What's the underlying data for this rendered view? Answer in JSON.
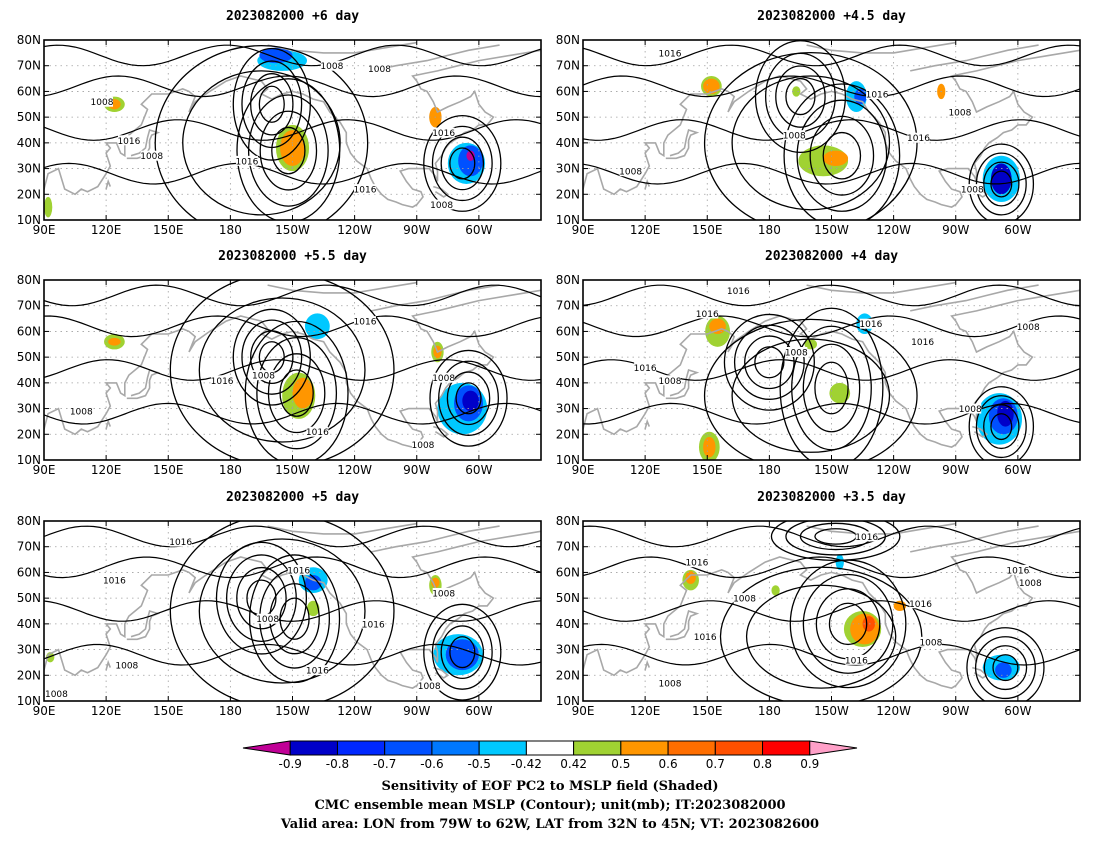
{
  "panels": [
    {
      "title": "2023082000 +6 day",
      "contour_labels": [
        {
          "text": "1008",
          "lon": 118,
          "lat": 56
        },
        {
          "text": "1016",
          "lon": 131,
          "lat": 41
        },
        {
          "text": "1008",
          "lon": 142,
          "lat": 35
        },
        {
          "text": "1016",
          "lon": 188,
          "lat": 33
        },
        {
          "text": "1016",
          "lon": 245,
          "lat": 22
        },
        {
          "text": "1008",
          "lon": 282,
          "lat": 16
        },
        {
          "text": "1008",
          "lon": 229,
          "lat": 70
        },
        {
          "text": "1008",
          "lon": 252,
          "lat": 69
        },
        {
          "text": "1016",
          "lon": 283,
          "lat": 44
        }
      ],
      "features": [
        {
          "kind": "low",
          "lon": 200,
          "lat": 55,
          "rx": 6,
          "ry": 7
        },
        {
          "kind": "low",
          "lon": 208,
          "lat": 37,
          "rx": 8,
          "ry": 9
        },
        {
          "kind": "low",
          "lon": 292,
          "lat": 32,
          "rx": 6,
          "ry": 6
        },
        {
          "kind": "high",
          "lon": 195,
          "lat": 40,
          "rx": 38,
          "ry": 28
        }
      ],
      "shading": [
        {
          "color": "#00c8ff",
          "lon": 205,
          "lat": 72,
          "rx": 12,
          "ry": 4
        },
        {
          "color": "#0050ff",
          "lon": 202,
          "lat": 74,
          "rx": 8,
          "ry": 3
        },
        {
          "color": "#a0d232",
          "lon": 210,
          "lat": 38,
          "rx": 8,
          "ry": 9
        },
        {
          "color": "#ff9600",
          "lon": 210,
          "lat": 38,
          "rx": 6,
          "ry": 7
        },
        {
          "color": "#a0d232",
          "lon": 124,
          "lat": 55,
          "rx": 5,
          "ry": 3
        },
        {
          "color": "#ff9600",
          "lon": 124,
          "lat": 55,
          "rx": 3,
          "ry": 2
        },
        {
          "color": "#ff9600",
          "lon": 279,
          "lat": 50,
          "rx": 3,
          "ry": 4
        },
        {
          "color": "#00c8ff",
          "lon": 294,
          "lat": 32,
          "rx": 9,
          "ry": 8
        },
        {
          "color": "#0050ff",
          "lon": 296,
          "lat": 33,
          "rx": 6,
          "ry": 6
        },
        {
          "color": "#c00096",
          "lon": 296,
          "lat": 35,
          "rx": 2,
          "ry": 2
        },
        {
          "color": "#a0d232",
          "lon": 92,
          "lat": 15,
          "rx": 2,
          "ry": 4
        }
      ]
    },
    {
      "title": "2023082000 +4.5 day",
      "contour_labels": [
        {
          "text": "1016",
          "lon": 132,
          "lat": 75
        },
        {
          "text": "1008",
          "lon": 192,
          "lat": 43
        },
        {
          "text": "1008",
          "lon": 113,
          "lat": 29
        },
        {
          "text": "1016",
          "lon": 232,
          "lat": 59
        },
        {
          "text": "1016",
          "lon": 252,
          "lat": 42
        },
        {
          "text": "1008",
          "lon": 272,
          "lat": 52
        },
        {
          "text": "1008",
          "lon": 278,
          "lat": 22
        }
      ],
      "features": [
        {
          "kind": "low",
          "lon": 195,
          "lat": 58,
          "rx": 7,
          "ry": 7
        },
        {
          "kind": "low",
          "lon": 215,
          "lat": 35,
          "rx": 9,
          "ry": 9
        },
        {
          "kind": "low",
          "lon": 292,
          "lat": 24,
          "rx": 5,
          "ry": 5
        },
        {
          "kind": "high",
          "lon": 200,
          "lat": 40,
          "rx": 38,
          "ry": 26
        }
      ],
      "shading": [
        {
          "color": "#a0d232",
          "lon": 152,
          "lat": 62,
          "rx": 5,
          "ry": 4
        },
        {
          "color": "#ff9600",
          "lon": 152,
          "lat": 62,
          "rx": 4,
          "ry": 3
        },
        {
          "color": "#a0d232",
          "lon": 206,
          "lat": 33,
          "rx": 12,
          "ry": 6
        },
        {
          "color": "#ff9600",
          "lon": 212,
          "lat": 34,
          "rx": 6,
          "ry": 3
        },
        {
          "color": "#00c8ff",
          "lon": 222,
          "lat": 58,
          "rx": 5,
          "ry": 6
        },
        {
          "color": "#0050ff",
          "lon": 224,
          "lat": 58,
          "rx": 3,
          "ry": 3
        },
        {
          "color": "#ff9600",
          "lon": 263,
          "lat": 60,
          "rx": 2,
          "ry": 3
        },
        {
          "color": "#00c8ff",
          "lon": 292,
          "lat": 26,
          "rx": 9,
          "ry": 9
        },
        {
          "color": "#0000c8",
          "lon": 292,
          "lat": 26,
          "rx": 5,
          "ry": 6
        },
        {
          "color": "#a0d232",
          "lon": 193,
          "lat": 60,
          "rx": 2,
          "ry": 2
        }
      ]
    },
    {
      "title": "2023082000 +5.5 day",
      "contour_labels": [
        {
          "text": "1016",
          "lon": 176,
          "lat": 41
        },
        {
          "text": "1008",
          "lon": 196,
          "lat": 43
        },
        {
          "text": "1008",
          "lon": 108,
          "lat": 29
        },
        {
          "text": "1016",
          "lon": 222,
          "lat": 21
        },
        {
          "text": "1016",
          "lon": 245,
          "lat": 64
        },
        {
          "text": "1008",
          "lon": 283,
          "lat": 42
        },
        {
          "text": "1008",
          "lon": 273,
          "lat": 16
        }
      ],
      "features": [
        {
          "kind": "low",
          "lon": 200,
          "lat": 50,
          "rx": 6,
          "ry": 6
        },
        {
          "kind": "low",
          "lon": 212,
          "lat": 36,
          "rx": 8,
          "ry": 9
        },
        {
          "kind": "low",
          "lon": 295,
          "lat": 34,
          "rx": 6,
          "ry": 6
        },
        {
          "kind": "high",
          "lon": 205,
          "lat": 45,
          "rx": 40,
          "ry": 28
        }
      ],
      "shading": [
        {
          "color": "#a0d232",
          "lon": 124,
          "lat": 56,
          "rx": 5,
          "ry": 3
        },
        {
          "color": "#ff9600",
          "lon": 124,
          "lat": 56,
          "rx": 3,
          "ry": 1.5
        },
        {
          "color": "#a0d232",
          "lon": 213,
          "lat": 35,
          "rx": 8,
          "ry": 9
        },
        {
          "color": "#ff9600",
          "lon": 215,
          "lat": 36,
          "rx": 5,
          "ry": 6
        },
        {
          "color": "#00c8ff",
          "lon": 222,
          "lat": 62,
          "rx": 6,
          "ry": 5
        },
        {
          "color": "#a0d232",
          "lon": 280,
          "lat": 52,
          "rx": 3,
          "ry": 4
        },
        {
          "color": "#ff9600",
          "lon": 280,
          "lat": 52,
          "rx": 2,
          "ry": 2.5
        },
        {
          "color": "#00c8ff",
          "lon": 292,
          "lat": 30,
          "rx": 12,
          "ry": 10
        },
        {
          "color": "#0050ff",
          "lon": 295,
          "lat": 32,
          "rx": 7,
          "ry": 7
        },
        {
          "color": "#0000c8",
          "lon": 296,
          "lat": 33,
          "rx": 4,
          "ry": 4
        }
      ]
    },
    {
      "title": "2023082000 +4 day",
      "contour_labels": [
        {
          "text": "1016",
          "lon": 165,
          "lat": 76
        },
        {
          "text": "1016",
          "lon": 150,
          "lat": 67
        },
        {
          "text": "1008",
          "lon": 193,
          "lat": 52
        },
        {
          "text": "1016",
          "lon": 120,
          "lat": 46
        },
        {
          "text": "1008",
          "lon": 132,
          "lat": 41
        },
        {
          "text": "1016",
          "lon": 229,
          "lat": 63
        },
        {
          "text": "1016",
          "lon": 254,
          "lat": 56
        },
        {
          "text": "1008",
          "lon": 305,
          "lat": 62
        },
        {
          "text": "1008",
          "lon": 277,
          "lat": 30
        }
      ],
      "features": [
        {
          "kind": "low",
          "lon": 180,
          "lat": 48,
          "rx": 7,
          "ry": 6
        },
        {
          "kind": "low",
          "lon": 210,
          "lat": 38,
          "rx": 8,
          "ry": 10
        },
        {
          "kind": "low",
          "lon": 292,
          "lat": 23,
          "rx": 5,
          "ry": 5
        },
        {
          "kind": "high",
          "lon": 200,
          "lat": 35,
          "rx": 38,
          "ry": 22
        }
      ],
      "shading": [
        {
          "color": "#a0d232",
          "lon": 155,
          "lat": 60,
          "rx": 6,
          "ry": 6
        },
        {
          "color": "#ff9600",
          "lon": 155,
          "lat": 62,
          "rx": 4,
          "ry": 3
        },
        {
          "color": "#a0d232",
          "lon": 151,
          "lat": 15,
          "rx": 5,
          "ry": 6
        },
        {
          "color": "#ff9600",
          "lon": 151,
          "lat": 15,
          "rx": 3,
          "ry": 4
        },
        {
          "color": "#a0d232",
          "lon": 214,
          "lat": 36,
          "rx": 5,
          "ry": 4
        },
        {
          "color": "#a0d232",
          "lon": 200,
          "lat": 55,
          "rx": 3,
          "ry": 2
        },
        {
          "color": "#00c8ff",
          "lon": 226,
          "lat": 63,
          "rx": 4,
          "ry": 4
        },
        {
          "color": "#00c8ff",
          "lon": 291,
          "lat": 26,
          "rx": 11,
          "ry": 10
        },
        {
          "color": "#0050ff",
          "lon": 293,
          "lat": 27,
          "rx": 7,
          "ry": 7
        },
        {
          "color": "#0000c8",
          "lon": 294,
          "lat": 28,
          "rx": 4,
          "ry": 5
        }
      ]
    },
    {
      "title": "2023082000 +5 day",
      "contour_labels": [
        {
          "text": "1016",
          "lon": 156,
          "lat": 72
        },
        {
          "text": "1016",
          "lon": 124,
          "lat": 57
        },
        {
          "text": "1008",
          "lon": 198,
          "lat": 42
        },
        {
          "text": "1008",
          "lon": 130,
          "lat": 24
        },
        {
          "text": "1016",
          "lon": 222,
          "lat": 22
        },
        {
          "text": "1016",
          "lon": 213,
          "lat": 61
        },
        {
          "text": "1008",
          "lon": 283,
          "lat": 52
        },
        {
          "text": "1016",
          "lon": 249,
          "lat": 40
        },
        {
          "text": "1008",
          "lon": 276,
          "lat": 16
        },
        {
          "text": "1008",
          "lon": 96,
          "lat": 13
        }
      ],
      "features": [
        {
          "kind": "low",
          "lon": 195,
          "lat": 50,
          "rx": 7,
          "ry": 7
        },
        {
          "kind": "low",
          "lon": 211,
          "lat": 42,
          "rx": 7,
          "ry": 8
        },
        {
          "kind": "low",
          "lon": 292,
          "lat": 29,
          "rx": 6,
          "ry": 6
        },
        {
          "kind": "high",
          "lon": 205,
          "lat": 45,
          "rx": 40,
          "ry": 28
        }
      ],
      "shading": [
        {
          "color": "#00c8ff",
          "lon": 220,
          "lat": 57,
          "rx": 7,
          "ry": 5
        },
        {
          "color": "#0050ff",
          "lon": 220,
          "lat": 56,
          "rx": 4,
          "ry": 3
        },
        {
          "color": "#a0d232",
          "lon": 220,
          "lat": 46,
          "rx": 3,
          "ry": 3
        },
        {
          "color": "#a0d232",
          "lon": 279,
          "lat": 55,
          "rx": 3,
          "ry": 4
        },
        {
          "color": "#ff9600",
          "lon": 279,
          "lat": 56,
          "rx": 2,
          "ry": 2
        },
        {
          "color": "#00c8ff",
          "lon": 290,
          "lat": 28,
          "rx": 12,
          "ry": 8
        },
        {
          "color": "#0050ff",
          "lon": 292,
          "lat": 28,
          "rx": 8,
          "ry": 6
        },
        {
          "color": "#a0d232",
          "lon": 93,
          "lat": 27,
          "rx": 2,
          "ry": 2
        }
      ]
    },
    {
      "title": "2023082000 +3.5 day",
      "contour_labels": [
        {
          "text": "1016",
          "lon": 227,
          "lat": 74
        },
        {
          "text": "1016",
          "lon": 145,
          "lat": 64
        },
        {
          "text": "1008",
          "lon": 168,
          "lat": 50
        },
        {
          "text": "1016",
          "lon": 149,
          "lat": 35
        },
        {
          "text": "1016",
          "lon": 222,
          "lat": 26
        },
        {
          "text": "1016",
          "lon": 253,
          "lat": 48
        },
        {
          "text": "1008",
          "lon": 258,
          "lat": 33
        },
        {
          "text": "1016",
          "lon": 300,
          "lat": 61
        },
        {
          "text": "1008",
          "lon": 306,
          "lat": 56
        },
        {
          "text": "1008",
          "lon": 132,
          "lat": 17
        }
      ],
      "features": [
        {
          "kind": "low",
          "lon": 218,
          "lat": 40,
          "rx": 9,
          "ry": 8
        },
        {
          "kind": "low",
          "lon": 294,
          "lat": 23,
          "rx": 6,
          "ry": 5
        },
        {
          "kind": "low",
          "lon": 212,
          "lat": 74,
          "rx": 10,
          "ry": 3
        },
        {
          "kind": "high",
          "lon": 205,
          "lat": 35,
          "rx": 36,
          "ry": 20
        }
      ],
      "shading": [
        {
          "color": "#a0d232",
          "lon": 225,
          "lat": 38,
          "rx": 9,
          "ry": 7
        },
        {
          "color": "#ff9600",
          "lon": 226,
          "lat": 38,
          "rx": 7,
          "ry": 6
        },
        {
          "color": "#ff5000",
          "lon": 228,
          "lat": 40,
          "rx": 3,
          "ry": 3
        },
        {
          "color": "#a0d232",
          "lon": 142,
          "lat": 57,
          "rx": 4,
          "ry": 4
        },
        {
          "color": "#ff9600",
          "lon": 142,
          "lat": 58,
          "rx": 2.5,
          "ry": 2.5
        },
        {
          "color": "#a0d232",
          "lon": 183,
          "lat": 53,
          "rx": 2,
          "ry": 2
        },
        {
          "color": "#ff9600",
          "lon": 243,
          "lat": 47,
          "rx": 3,
          "ry": 2
        },
        {
          "color": "#00c8ff",
          "lon": 292,
          "lat": 23,
          "rx": 9,
          "ry": 5
        },
        {
          "color": "#0050ff",
          "lon": 293,
          "lat": 22,
          "rx": 4,
          "ry": 3
        },
        {
          "color": "#00c8ff",
          "lon": 214,
          "lat": 64,
          "rx": 2,
          "ry": 3
        }
      ]
    }
  ],
  "axes": {
    "lon_range": [
      90,
      300
    ],
    "lat_range": [
      10,
      80
    ],
    "lon_ticks": [
      {
        "value": 90,
        "label": "90E"
      },
      {
        "value": 120,
        "label": "120E"
      },
      {
        "value": 150,
        "label": "150E"
      },
      {
        "value": 180,
        "label": "180"
      },
      {
        "value": 210,
        "label": "150W"
      },
      {
        "value": 240,
        "label": "120W"
      },
      {
        "value": 270,
        "label": "90W"
      },
      {
        "value": 300,
        "label": "60W"
      }
    ],
    "lat_ticks": [
      {
        "value": 10,
        "label": "10N"
      },
      {
        "value": 20,
        "label": "20N"
      },
      {
        "value": 30,
        "label": "30N"
      },
      {
        "value": 40,
        "label": "40N"
      },
      {
        "value": 50,
        "label": "50N"
      },
      {
        "value": 60,
        "label": "60N"
      },
      {
        "value": 70,
        "label": "70N"
      },
      {
        "value": 80,
        "label": "80N"
      }
    ]
  },
  "colorbar": {
    "colors": [
      "#c00096",
      "#0000c8",
      "#0028ff",
      "#0050ff",
      "#0078ff",
      "#00c8ff",
      "#ffffff",
      "#a0d232",
      "#ff9600",
      "#ff6e00",
      "#ff5000",
      "#ff0000",
      "#ffa0c8"
    ],
    "labels": [
      "-0.9",
      "-0.8",
      "-0.7",
      "-0.6",
      "-0.5",
      "-0.42",
      "0.42",
      "0.5",
      "0.6",
      "0.7",
      "0.8",
      "0.9"
    ]
  },
  "caption": {
    "line1": "Sensitivity of EOF PC2 to MSLP field (Shaded)",
    "line2": "CMC ensemble mean MSLP (Contour); unit(mb); IT:2023082000",
    "line3": "Valid area: LON from 79W to 62W, LAT from 32N to 45N; VT: 2023082600"
  },
  "colors": {
    "coast": "#a8a8a8",
    "contour": "#000000",
    "grid": "#a0a0a0"
  }
}
